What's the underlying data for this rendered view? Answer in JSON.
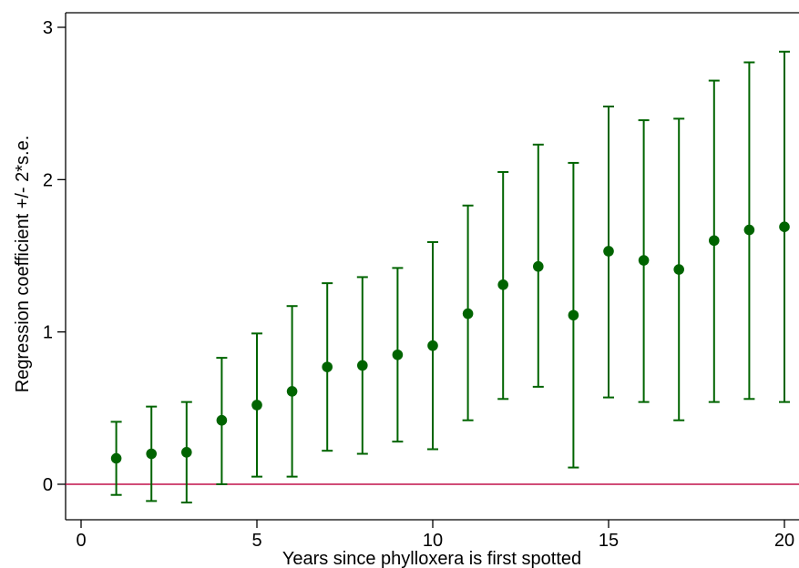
{
  "chart_data": {
    "type": "scatter",
    "xlabel": "Years since phylloxera is first spotted",
    "ylabel": "Regression coefficient +/- 2*s.e.",
    "xlim": [
      0,
      20.7
    ],
    "ylim": [
      -0.24,
      3.1
    ],
    "x_ticks": [
      "0",
      "5",
      "10",
      "15",
      "20"
    ],
    "y_ticks": [
      "0",
      "1",
      "2",
      "3"
    ],
    "colors": {
      "points": "#006400",
      "reference_line": "#c0104a"
    },
    "reference_line_y": 0,
    "points": [
      {
        "x": 1,
        "y": 0.17,
        "low": -0.07,
        "high": 0.41
      },
      {
        "x": 2,
        "y": 0.2,
        "low": -0.11,
        "high": 0.51
      },
      {
        "x": 3,
        "y": 0.21,
        "low": -0.12,
        "high": 0.54
      },
      {
        "x": 4,
        "y": 0.42,
        "low": 0.0,
        "high": 0.83
      },
      {
        "x": 5,
        "y": 0.52,
        "low": 0.05,
        "high": 0.99
      },
      {
        "x": 6,
        "y": 0.61,
        "low": 0.05,
        "high": 1.17
      },
      {
        "x": 7,
        "y": 0.77,
        "low": 0.22,
        "high": 1.32
      },
      {
        "x": 8,
        "y": 0.78,
        "low": 0.2,
        "high": 1.36
      },
      {
        "x": 9,
        "y": 0.85,
        "low": 0.28,
        "high": 1.42
      },
      {
        "x": 10,
        "y": 0.91,
        "low": 0.23,
        "high": 1.59
      },
      {
        "x": 11,
        "y": 1.12,
        "low": 0.42,
        "high": 1.83
      },
      {
        "x": 12,
        "y": 1.31,
        "low": 0.56,
        "high": 2.05
      },
      {
        "x": 13,
        "y": 1.43,
        "low": 0.64,
        "high": 2.23
      },
      {
        "x": 14,
        "y": 1.11,
        "low": 0.11,
        "high": 2.11
      },
      {
        "x": 15,
        "y": 1.53,
        "low": 0.57,
        "high": 2.48
      },
      {
        "x": 16,
        "y": 1.47,
        "low": 0.54,
        "high": 2.39
      },
      {
        "x": 17,
        "y": 1.41,
        "low": 0.42,
        "high": 2.4
      },
      {
        "x": 18,
        "y": 1.6,
        "low": 0.54,
        "high": 2.65
      },
      {
        "x": 19,
        "y": 1.67,
        "low": 0.56,
        "high": 2.77
      },
      {
        "x": 20,
        "y": 1.69,
        "low": 0.54,
        "high": 2.84
      }
    ]
  }
}
